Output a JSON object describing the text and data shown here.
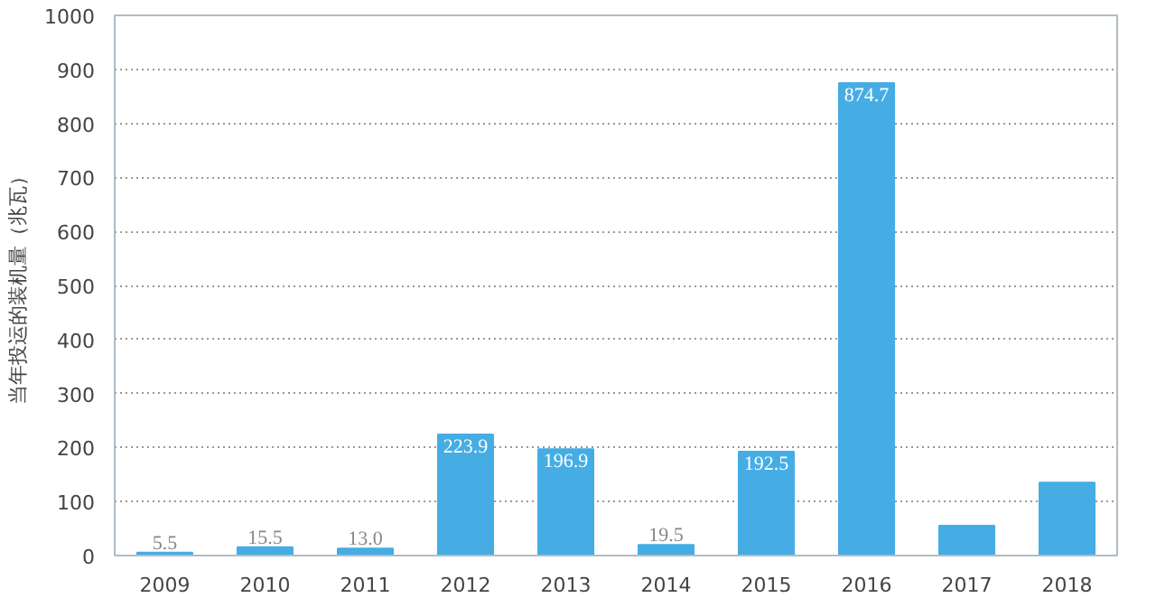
{
  "chart_data": {
    "type": "bar",
    "ylabel": "当年投运的装机量（兆瓦）",
    "categories": [
      "2009",
      "2010",
      "2011",
      "2012",
      "2013",
      "2014",
      "2015",
      "2016",
      "2017",
      "2018"
    ],
    "values": [
      5.5,
      15.5,
      13.0,
      223.9,
      196.9,
      19.5,
      192.5,
      874.7,
      55,
      135
    ],
    "value_labels": [
      "5.5",
      "15.5",
      "13.0",
      "223.9",
      "196.9",
      "19.5",
      "192.5",
      "874.7",
      null,
      null
    ],
    "color": "#45ade4",
    "ylim": [
      0,
      1000
    ],
    "yticks": [
      0,
      100,
      200,
      300,
      400,
      500,
      600,
      700,
      800,
      900,
      1000
    ],
    "grid": "y"
  }
}
